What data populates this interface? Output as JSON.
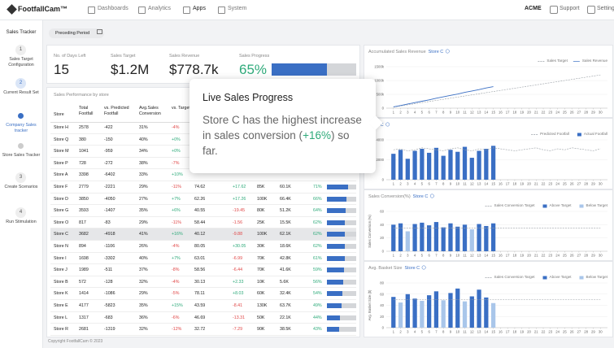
{
  "nav": {
    "logo": "FootfallCam™",
    "items": [
      "Dashboards",
      "Analytics",
      "Apps",
      "System"
    ],
    "account": "ACME",
    "links": [
      "Support",
      "Setting"
    ]
  },
  "sidebar": {
    "title": "Sales Tracker",
    "steps": [
      {
        "number": "1",
        "label": "Sales Target Configuration"
      },
      {
        "number": "2",
        "label": "Current Result Set"
      },
      {
        "label": "Company Sales tracker"
      },
      {
        "label": "Store Sales Tracker"
      },
      {
        "number": "3",
        "label": "Create Scenarios"
      },
      {
        "number": "4",
        "label": "Run Stimulation"
      }
    ]
  },
  "filter": "Preceding Period",
  "kpis": [
    {
      "label": "No. of Days Left",
      "value": "15"
    },
    {
      "label": "Sales Target",
      "value": "$1.2M"
    },
    {
      "label": "Sales Revenue",
      "value": "$778.7k"
    },
    {
      "label": "Sales Progress",
      "value": 65,
      "value_label": "65%"
    }
  ],
  "table": {
    "title": "Sales Performance by store",
    "columns": [
      "Store",
      "Total Footfall",
      "vs. Predicted Footfall",
      "Avg.Sales Conversion",
      "vs. Target"
    ],
    "rows": [
      {
        "cells": [
          "Store H",
          "2578",
          "-422",
          "31%",
          "-4%"
        ]
      },
      {
        "cells": [
          "Store Q",
          "380",
          "-150",
          "40%",
          "+0%"
        ]
      },
      {
        "cells": [
          "Store M",
          "1041",
          "-959",
          "34%",
          "+0%"
        ]
      },
      {
        "cells": [
          "Store P",
          "728",
          "-272",
          "38%",
          "-7%"
        ]
      },
      {
        "cells": [
          "Store A",
          "3398",
          "-6402",
          "33%",
          "+10%"
        ]
      },
      {
        "cells": [
          "Store F",
          "2779",
          "-2221",
          "29%",
          "-11%",
          "74.62",
          "+17.62",
          "85K",
          "60.1K"
        ],
        "progress": 71,
        "progress_label": "71%"
      },
      {
        "cells": [
          "Store D",
          "3850",
          "-4050",
          "27%",
          "+7%",
          "62.26",
          "+17.26",
          "100K",
          "66.4K"
        ],
        "progress": 66,
        "progress_label": "66%"
      },
      {
        "cells": [
          "Store G",
          "3593",
          "-1407",
          "35%",
          "+6%",
          "40.55",
          "-19.45",
          "80K",
          "51.2K"
        ],
        "progress": 64,
        "progress_label": "64%"
      },
      {
        "cells": [
          "Store O",
          "817",
          "-83",
          "29%",
          "-11%",
          "58.44",
          "-1.56",
          "25K",
          "15.5K"
        ],
        "progress": 62,
        "progress_label": "62%"
      },
      {
        "cells": [
          "Store C",
          "3682",
          "-4918",
          "41%",
          "+16%",
          "40.12",
          "-9.88",
          "100K",
          "62.1K"
        ],
        "progress": 62,
        "progress_label": "62%",
        "highlighted": true
      },
      {
        "cells": [
          "Store N",
          "894",
          "-1106",
          "26%",
          "-4%",
          "80.05",
          "+30.05",
          "30K",
          "18.6K"
        ],
        "progress": 62,
        "progress_label": "62%"
      },
      {
        "cells": [
          "Store I",
          "1698",
          "-3302",
          "40%",
          "+7%",
          "63.01",
          "-6.99",
          "70K",
          "42.8K"
        ],
        "progress": 61,
        "progress_label": "61%"
      },
      {
        "cells": [
          "Store J",
          "1989",
          "-511",
          "37%",
          "-8%",
          "58.56",
          "-6.44",
          "70K",
          "41.6K"
        ],
        "progress": 59,
        "progress_label": "59%"
      },
      {
        "cells": [
          "Store B",
          "572",
          "-128",
          "32%",
          "-4%",
          "30.13",
          "+2.33",
          "10K",
          "5.6K"
        ],
        "progress": 56,
        "progress_label": "56%"
      },
      {
        "cells": [
          "Store K",
          "1414",
          "-1086",
          "29%",
          "-5%",
          "78.11",
          "+8.03",
          "60K",
          "32.4K"
        ],
        "progress": 54,
        "progress_label": "54%"
      },
      {
        "cells": [
          "Store E",
          "4177",
          "-5823",
          "35%",
          "+15%",
          "43.59",
          "-8.41",
          "130K",
          "63.7K"
        ],
        "progress": 49,
        "progress_label": "49%"
      },
      {
        "cells": [
          "Store L",
          "1317",
          "-683",
          "36%",
          "-6%",
          "46.69",
          "-13.31",
          "50K",
          "22.1K"
        ],
        "progress": 44,
        "progress_label": "44%"
      },
      {
        "cells": [
          "Store R",
          "2681",
          "-1319",
          "32%",
          "-12%",
          "32.72",
          "-7.29",
          "90K",
          "38.5K"
        ],
        "progress": 43,
        "progress_label": "43%"
      }
    ]
  },
  "tooltip": {
    "title": "Live Sales Progress",
    "text_before": "Store C has the highest increase in sales conversion (",
    "highlight": "+16%",
    "text_after": ") so far."
  },
  "charts": [
    {
      "type": "line",
      "title": "Accumulated Sales Revenue",
      "store": "Store C",
      "x": [
        1,
        2,
        3,
        4,
        5,
        6,
        7,
        8,
        9,
        10,
        11,
        12,
        13,
        14,
        15,
        16,
        17,
        18,
        19,
        20,
        21,
        22,
        23,
        24,
        25,
        26,
        27,
        28,
        29,
        30
      ],
      "xlim": [
        0,
        31
      ],
      "ylim": [
        0,
        1500000
      ],
      "yticks": [
        0,
        {
          "value": 500000,
          "label": "500k"
        },
        {
          "value": 1000000,
          "label": "1000k"
        },
        {
          "value": 1500000,
          "label": "1500k"
        }
      ],
      "series": [
        {
          "name": "Sales Target",
          "kind": "line",
          "style": "dashed",
          "color": "#9aa0a6",
          "values": [
            40000,
            80000,
            120000,
            160000,
            200000,
            240000,
            280000,
            320000,
            360000,
            400000,
            440000,
            480000,
            520000,
            560000,
            600000,
            640000,
            680000,
            720000,
            760000,
            800000,
            840000,
            880000,
            920000,
            960000,
            1000000,
            1040000,
            1080000,
            1120000,
            1160000,
            1200000
          ]
        },
        {
          "name": "Sales Revenue",
          "kind": "line",
          "color": "#3a6fc4",
          "values": [
            45000,
            95000,
            150000,
            200000,
            250000,
            300000,
            360000,
            410000,
            460000,
            510000,
            570000,
            620000,
            670000,
            730000,
            778700,
            null,
            null,
            null,
            null,
            null,
            null,
            null,
            null,
            null,
            null,
            null,
            null,
            null,
            null,
            null
          ]
        }
      ]
    },
    {
      "type": "bar",
      "store": "Store C",
      "x": [
        1,
        2,
        3,
        4,
        5,
        6,
        7,
        8,
        9,
        10,
        11,
        12,
        13,
        14,
        15,
        16,
        17,
        18,
        19,
        20,
        21,
        22,
        23,
        24,
        25,
        26,
        27,
        28,
        29,
        30
      ],
      "xlim": [
        0,
        31
      ],
      "ylim": [
        0,
        4000
      ],
      "yticks": [
        0,
        2000,
        4000
      ],
      "series": [
        {
          "name": "Predicted Footfall",
          "kind": "line",
          "style": "dashed",
          "color": "#9aa0a6",
          "values": [
            3000,
            3100,
            2900,
            3000,
            3200,
            3100,
            3000,
            2900,
            3100,
            3200,
            3000,
            2900,
            3100,
            3000,
            3200,
            3100,
            3000,
            2900,
            3000,
            3100,
            3200,
            3000,
            2900,
            3100,
            3000,
            3200,
            3100,
            3000,
            2900,
            3100
          ]
        },
        {
          "name": "Actual Footfall",
          "kind": "bar",
          "color": "#3a6fc4",
          "values": [
            2600,
            3000,
            2100,
            2900,
            3100,
            2700,
            3200,
            2400,
            3000,
            2800,
            3300,
            2200,
            2900,
            3100,
            3400,
            null,
            null,
            null,
            null,
            null,
            null,
            null,
            null,
            null,
            null,
            null,
            null,
            null,
            null,
            null
          ]
        }
      ]
    },
    {
      "type": "bar",
      "title": "Sales Conversion(%)",
      "store": "Store C",
      "y_label": "Sales Conversion (%)",
      "x": [
        1,
        2,
        3,
        4,
        5,
        6,
        7,
        8,
        9,
        10,
        11,
        12,
        13,
        14,
        15,
        16,
        17,
        18,
        19,
        20,
        21,
        22,
        23,
        24,
        25,
        26,
        27,
        28,
        29,
        30
      ],
      "xlim": [
        0,
        31
      ],
      "ylim": [
        0,
        60
      ],
      "yticks": [
        0,
        20,
        40,
        60
      ],
      "series": [
        {
          "name": "Sales Conversion Target",
          "kind": "line",
          "style": "dashed",
          "color": "#9aa0a6",
          "values": [
            35,
            35,
            35,
            35,
            35,
            35,
            35,
            35,
            35,
            35,
            35,
            35,
            35,
            35,
            35,
            35,
            35,
            35,
            35,
            35,
            35,
            35,
            35,
            35,
            35,
            35,
            35,
            35,
            35,
            35
          ]
        },
        {
          "name": "Above Target",
          "kind": "bar",
          "color": "#3a6fc4",
          "values": [
            40,
            42,
            null,
            41,
            43,
            39,
            44,
            36,
            42,
            37,
            40,
            null,
            41,
            38,
            42,
            null,
            null,
            null,
            null,
            null,
            null,
            null,
            null,
            null,
            null,
            null,
            null,
            null,
            null,
            null
          ]
        },
        {
          "name": "Below Target",
          "kind": "bar",
          "color": "#a9c6ea",
          "values": [
            null,
            null,
            30,
            null,
            null,
            null,
            null,
            null,
            null,
            null,
            null,
            33,
            null,
            null,
            null,
            null,
            null,
            null,
            null,
            null,
            null,
            null,
            null,
            null,
            null,
            null,
            null,
            null,
            null,
            null
          ]
        }
      ]
    },
    {
      "type": "bar",
      "title": "Avg. Basket Size",
      "store": "Store C",
      "y_label": "Avg. Basket Size ($)",
      "x": [
        1,
        2,
        3,
        4,
        5,
        6,
        7,
        8,
        9,
        10,
        11,
        12,
        13,
        14,
        15,
        16,
        17,
        18,
        19,
        20,
        21,
        22,
        23,
        24,
        25,
        26,
        27,
        28,
        29,
        30
      ],
      "xlim": [
        0,
        31
      ],
      "ylim": [
        0,
        80
      ],
      "yticks": [
        0,
        20,
        40,
        60,
        80
      ],
      "series": [
        {
          "name": "Sales Conversion Target",
          "kind": "line",
          "style": "dashed",
          "color": "#9aa0a6",
          "values": [
            50,
            50,
            50,
            50,
            50,
            50,
            50,
            50,
            50,
            50,
            50,
            50,
            50,
            50,
            50,
            50,
            50,
            50,
            50,
            50,
            50,
            50,
            50,
            50,
            50,
            50,
            50,
            50,
            50,
            50
          ]
        },
        {
          "name": "Above Target",
          "kind": "bar",
          "color": "#3a6fc4",
          "values": [
            55,
            null,
            60,
            52,
            null,
            58,
            65,
            null,
            62,
            70,
            null,
            56,
            68,
            54,
            null,
            null,
            null,
            null,
            null,
            null,
            null,
            null,
            null,
            null,
            null,
            null,
            null,
            null,
            null,
            null
          ]
        },
        {
          "name": "Below Target",
          "kind": "bar",
          "color": "#a9c6ea",
          "values": [
            null,
            45,
            null,
            null,
            48,
            null,
            null,
            49,
            null,
            null,
            47,
            null,
            null,
            null,
            44,
            null,
            null,
            null,
            null,
            null,
            null,
            null,
            null,
            null,
            null,
            null,
            null,
            null,
            null,
            null
          ]
        }
      ]
    }
  ],
  "footer": "Copyright FootfallCam © 2023"
}
